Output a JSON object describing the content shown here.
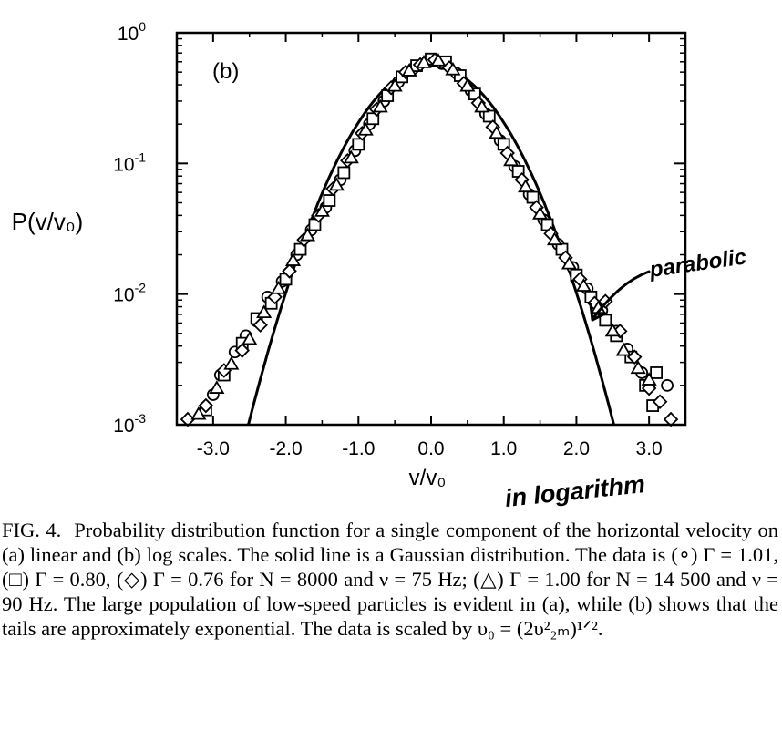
{
  "chart_data": {
    "type": "scatter",
    "panel_label": "(b)",
    "ylabel": "P(v/v₀)",
    "xlabel": "v/v₀",
    "xlim": [
      -3.5,
      3.5
    ],
    "ylim": [
      0.001,
      1
    ],
    "y_scale": "log",
    "x_ticks": [
      "-3.0",
      "-2.0",
      "-1.0",
      "0.0",
      "1.0",
      "2.0",
      "3.0"
    ],
    "x_tick_values": [
      -3,
      -2,
      -1,
      0,
      1,
      2,
      3
    ],
    "y_tick_values": [
      1,
      0.1,
      0.01,
      0.001
    ],
    "y_ticks": [
      {
        "base": "10",
        "exp": "0"
      },
      {
        "base": "10",
        "exp": "-1"
      },
      {
        "base": "10",
        "exp": "-2"
      },
      {
        "base": "10",
        "exp": "-3"
      }
    ],
    "gaussian": {
      "amplitude": 0.56,
      "sigma": 0.707
    },
    "series": [
      {
        "marker": "circle",
        "points": [
          [
            -3.0,
            0.0017
          ],
          [
            -2.9,
            0.0024
          ],
          [
            -2.7,
            0.0036
          ],
          [
            -2.55,
            0.0048
          ],
          [
            -2.4,
            0.0062
          ],
          [
            -2.25,
            0.0095
          ],
          [
            -2.05,
            0.0125
          ],
          [
            -1.85,
            0.02
          ],
          [
            -1.65,
            0.031
          ],
          [
            -1.45,
            0.046
          ],
          [
            -1.25,
            0.075
          ],
          [
            -1.05,
            0.125
          ],
          [
            -0.85,
            0.2
          ],
          [
            -0.65,
            0.3
          ],
          [
            -0.45,
            0.42
          ],
          [
            -0.25,
            0.53
          ],
          [
            -0.05,
            0.6
          ],
          [
            0.15,
            0.58
          ],
          [
            0.35,
            0.49
          ],
          [
            0.55,
            0.36
          ],
          [
            0.75,
            0.24
          ],
          [
            0.95,
            0.15
          ],
          [
            1.15,
            0.095
          ],
          [
            1.35,
            0.058
          ],
          [
            1.55,
            0.037
          ],
          [
            1.75,
            0.024
          ],
          [
            1.95,
            0.016
          ],
          [
            2.15,
            0.011
          ],
          [
            2.35,
            0.0075
          ],
          [
            2.55,
            0.0052
          ],
          [
            2.7,
            0.0038
          ],
          [
            2.9,
            0.0025
          ],
          [
            3.0,
            0.002
          ],
          [
            3.25,
            0.002
          ]
        ]
      },
      {
        "marker": "square",
        "points": [
          [
            -3.1,
            0.0013
          ],
          [
            -2.85,
            0.0024
          ],
          [
            -2.6,
            0.0042
          ],
          [
            -2.4,
            0.0065
          ],
          [
            -2.2,
            0.0085
          ],
          [
            -2.0,
            0.013
          ],
          [
            -1.8,
            0.022
          ],
          [
            -1.6,
            0.034
          ],
          [
            -1.4,
            0.052
          ],
          [
            -1.2,
            0.085
          ],
          [
            -1.0,
            0.14
          ],
          [
            -0.8,
            0.22
          ],
          [
            -0.6,
            0.33
          ],
          [
            -0.4,
            0.46
          ],
          [
            -0.2,
            0.56
          ],
          [
            0.0,
            0.63
          ],
          [
            0.2,
            0.6
          ],
          [
            0.4,
            0.47
          ],
          [
            0.6,
            0.34
          ],
          [
            0.8,
            0.23
          ],
          [
            1.0,
            0.14
          ],
          [
            1.2,
            0.087
          ],
          [
            1.4,
            0.055
          ],
          [
            1.6,
            0.034
          ],
          [
            1.8,
            0.022
          ],
          [
            2.0,
            0.014
          ],
          [
            2.2,
            0.0095
          ],
          [
            2.4,
            0.0063
          ],
          [
            2.55,
            0.0048
          ],
          [
            2.75,
            0.0033
          ],
          [
            2.95,
            0.002
          ],
          [
            3.1,
            0.0025
          ],
          [
            3.05,
            0.0014
          ]
        ]
      },
      {
        "marker": "diamond",
        "points": [
          [
            -3.35,
            0.0011
          ],
          [
            -3.1,
            0.0014
          ],
          [
            -2.85,
            0.0026
          ],
          [
            -2.6,
            0.0037
          ],
          [
            -2.35,
            0.0058
          ],
          [
            -2.15,
            0.0095
          ],
          [
            -1.95,
            0.015
          ],
          [
            -1.75,
            0.026
          ],
          [
            -1.55,
            0.04
          ],
          [
            -1.35,
            0.064
          ],
          [
            -1.15,
            0.105
          ],
          [
            -0.95,
            0.17
          ],
          [
            -0.75,
            0.26
          ],
          [
            -0.55,
            0.38
          ],
          [
            -0.35,
            0.5
          ],
          [
            -0.15,
            0.57
          ],
          [
            0.05,
            0.62
          ],
          [
            0.25,
            0.54
          ],
          [
            0.45,
            0.41
          ],
          [
            0.65,
            0.29
          ],
          [
            0.85,
            0.19
          ],
          [
            1.05,
            0.12
          ],
          [
            1.25,
            0.075
          ],
          [
            1.45,
            0.046
          ],
          [
            1.65,
            0.029
          ],
          [
            1.85,
            0.019
          ],
          [
            2.05,
            0.013
          ],
          [
            2.25,
            0.0085
          ],
          [
            2.4,
            0.0088
          ],
          [
            2.6,
            0.0052
          ],
          [
            2.8,
            0.0033
          ],
          [
            3.0,
            0.0019
          ],
          [
            3.15,
            0.0015
          ],
          [
            3.3,
            0.0011
          ]
        ]
      },
      {
        "marker": "triangle",
        "points": [
          [
            -3.2,
            0.0012
          ],
          [
            -2.95,
            0.0019
          ],
          [
            -2.75,
            0.0029
          ],
          [
            -2.5,
            0.0045
          ],
          [
            -2.3,
            0.0072
          ],
          [
            -2.1,
            0.011
          ],
          [
            -1.9,
            0.018
          ],
          [
            -1.7,
            0.028
          ],
          [
            -1.5,
            0.043
          ],
          [
            -1.3,
            0.068
          ],
          [
            -1.1,
            0.11
          ],
          [
            -0.9,
            0.18
          ],
          [
            -0.7,
            0.27
          ],
          [
            -0.5,
            0.39
          ],
          [
            -0.3,
            0.51
          ],
          [
            -0.1,
            0.59
          ],
          [
            0.1,
            0.61
          ],
          [
            0.3,
            0.52
          ],
          [
            0.5,
            0.39
          ],
          [
            0.7,
            0.27
          ],
          [
            0.9,
            0.17
          ],
          [
            1.1,
            0.105
          ],
          [
            1.3,
            0.066
          ],
          [
            1.5,
            0.041
          ],
          [
            1.7,
            0.026
          ],
          [
            1.9,
            0.017
          ],
          [
            2.1,
            0.0115
          ],
          [
            2.3,
            0.0078
          ],
          [
            2.5,
            0.0052
          ],
          [
            2.65,
            0.0037
          ],
          [
            2.85,
            0.0027
          ],
          [
            3.0,
            0.0022
          ]
        ]
      }
    ]
  },
  "annotations": {
    "arrow_text": "parabolic",
    "axis_note": "in logarithm"
  },
  "caption": {
    "label": "FIG. 4.",
    "text": "Probability distribution function for a single component of the horizontal velocity on (a) linear and (b) log scales. The solid line is a Gaussian distribution. The data is (∘) Γ = 1.01, (□) Γ = 0.80, (◇) Γ = 0.76 for N = 8000 and ν = 75 Hz; (△) Γ = 1.00 for N = 14 500 and ν = 90 Hz. The large population of low-speed particles is evident in (a), while (b) shows that the tails are approximately exponential. The data is scaled by υ₀ = (2υ²₂ₘ)¹ᐟ²."
  }
}
